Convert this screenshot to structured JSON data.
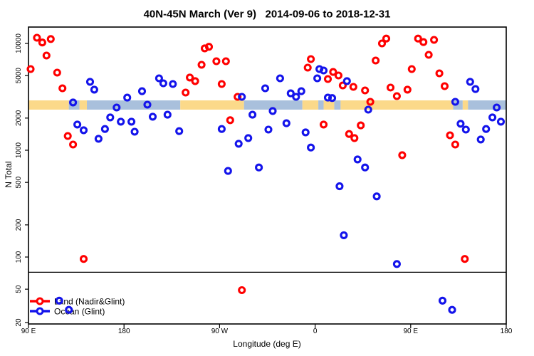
{
  "chart_data": {
    "type": "scatter",
    "title": "40N-45N March (Ver 9)   2014-09-06 to 2018-12-31",
    "x_axis": {
      "label": "Longitude (deg E)",
      "note": "axis runs eastward from 90E wrapping through 180, 90W, 0, 90E to 180; positions stored as unwrapped degrees 90..540",
      "range_deg": [
        90,
        540
      ],
      "ticks_deg": [
        90,
        180,
        270,
        360,
        450,
        540
      ],
      "tick_labels": [
        "90 E",
        "180",
        "90 W",
        "0",
        "90 E",
        "180"
      ]
    },
    "y_axis": {
      "label": "N Total",
      "scale": "log",
      "ticks": [
        10000,
        5000,
        2000,
        1000,
        500,
        200,
        100,
        50,
        20
      ],
      "range": [
        23,
        14200
      ]
    },
    "hline_n": 72,
    "surface_band": {
      "top_n": 2930,
      "bottom_n": 2400,
      "land_color": "#FBD98A",
      "ocean_color": "#A9C0DC",
      "segments": [
        {
          "from": 90,
          "to": 128,
          "surface": "land"
        },
        {
          "from": 128,
          "to": 138,
          "surface": "ocean"
        },
        {
          "from": 138,
          "to": 145,
          "surface": "land"
        },
        {
          "from": 145,
          "to": 233,
          "surface": "ocean"
        },
        {
          "from": 233,
          "to": 293,
          "surface": "land"
        },
        {
          "from": 293,
          "to": 348,
          "surface": "ocean"
        },
        {
          "from": 348,
          "to": 363,
          "surface": "land"
        },
        {
          "from": 363,
          "to": 368,
          "surface": "ocean"
        },
        {
          "from": 368,
          "to": 378,
          "surface": "land"
        },
        {
          "from": 378,
          "to": 384,
          "surface": "ocean"
        },
        {
          "from": 384,
          "to": 490,
          "surface": "land"
        },
        {
          "from": 490,
          "to": 499,
          "surface": "ocean"
        },
        {
          "from": 499,
          "to": 504,
          "surface": "land"
        },
        {
          "from": 504,
          "to": 540,
          "surface": "ocean"
        }
      ]
    },
    "legend": {
      "position": "bottom-left",
      "items": [
        {
          "label": "Land (Nadir&Glint)",
          "color": "#FF0000"
        },
        {
          "label": "Ocean (Glint)",
          "color": "#1414EB"
        }
      ]
    },
    "series": [
      {
        "name": "Land (Nadir&Glint)",
        "color": "#FF0000",
        "points": [
          [
            98,
            11300
          ],
          [
            103,
            10200
          ],
          [
            111,
            11000
          ],
          [
            107,
            7700
          ],
          [
            92,
            5750
          ],
          [
            117,
            5330
          ],
          [
            122,
            3800
          ],
          [
            127,
            1360
          ],
          [
            132,
            1130
          ],
          [
            256,
            9000
          ],
          [
            260,
            9300
          ],
          [
            253,
            6310
          ],
          [
            267,
            6810
          ],
          [
            276,
            6810
          ],
          [
            242,
            4790
          ],
          [
            247,
            4440
          ],
          [
            238,
            3470
          ],
          [
            272,
            4170
          ],
          [
            287,
            3160
          ],
          [
            280,
            1910
          ],
          [
            423,
            10000
          ],
          [
            427,
            11100
          ],
          [
            356,
            7130
          ],
          [
            353,
            5930
          ],
          [
            377,
            5400
          ],
          [
            382,
            5010
          ],
          [
            372,
            4640
          ],
          [
            386,
            4040
          ],
          [
            396,
            3920
          ],
          [
            407,
            3630
          ],
          [
            417,
            6920
          ],
          [
            431,
            3860
          ],
          [
            412,
            2840
          ],
          [
            368,
            1740
          ],
          [
            392,
            1420
          ],
          [
            397,
            1300
          ],
          [
            403,
            1710
          ],
          [
            457,
            11100
          ],
          [
            462,
            10300
          ],
          [
            472,
            10800
          ],
          [
            467,
            7820
          ],
          [
            451,
            5750
          ],
          [
            477,
            5250
          ],
          [
            482,
            3980
          ],
          [
            437,
            3210
          ],
          [
            447,
            3690
          ],
          [
            487,
            1380
          ],
          [
            492,
            1130
          ],
          [
            442,
            900
          ],
          [
            142,
            96
          ],
          [
            291,
            49
          ],
          [
            501,
            96
          ]
        ]
      },
      {
        "name": "Ocean (Glint)",
        "color": "#1414EB",
        "points": [
          [
            148,
            4370
          ],
          [
            152,
            3690
          ],
          [
            132,
            2800
          ],
          [
            183,
            3110
          ],
          [
            197,
            3570
          ],
          [
            202,
            2670
          ],
          [
            173,
            2510
          ],
          [
            167,
            2030
          ],
          [
            177,
            1850
          ],
          [
            187,
            1850
          ],
          [
            136,
            1740
          ],
          [
            142,
            1540
          ],
          [
            162,
            1580
          ],
          [
            156,
            1280
          ],
          [
            190,
            1490
          ],
          [
            213,
            4710
          ],
          [
            217,
            4230
          ],
          [
            226,
            4170
          ],
          [
            291,
            3160
          ],
          [
            313,
            3800
          ],
          [
            207,
            2060
          ],
          [
            221,
            2150
          ],
          [
            232,
            1510
          ],
          [
            272,
            1580
          ],
          [
            301,
            2150
          ],
          [
            288,
            1150
          ],
          [
            297,
            1300
          ],
          [
            316,
            1560
          ],
          [
            278,
            640
          ],
          [
            307,
            690
          ],
          [
            327,
            4710
          ],
          [
            337,
            3410
          ],
          [
            347,
            3570
          ],
          [
            342,
            3160
          ],
          [
            364,
            5750
          ],
          [
            368,
            5580
          ],
          [
            362,
            4710
          ],
          [
            390,
            4440
          ],
          [
            372,
            3110
          ],
          [
            376,
            3080
          ],
          [
            410,
            2400
          ],
          [
            320,
            2330
          ],
          [
            333,
            1790
          ],
          [
            351,
            1470
          ],
          [
            356,
            1060
          ],
          [
            400,
            820
          ],
          [
            407,
            690
          ],
          [
            506,
            4370
          ],
          [
            511,
            3740
          ],
          [
            492,
            2840
          ],
          [
            531,
            2510
          ],
          [
            527,
            2030
          ],
          [
            535,
            1850
          ],
          [
            497,
            1770
          ],
          [
            502,
            1560
          ],
          [
            521,
            1580
          ],
          [
            516,
            1260
          ],
          [
            383,
            460
          ],
          [
            418,
            370
          ],
          [
            387,
            160
          ],
          [
            437,
            86
          ],
          [
            480,
            39
          ],
          [
            489,
            32
          ],
          [
            119,
            39
          ],
          [
            128,
            32
          ]
        ]
      }
    ]
  }
}
